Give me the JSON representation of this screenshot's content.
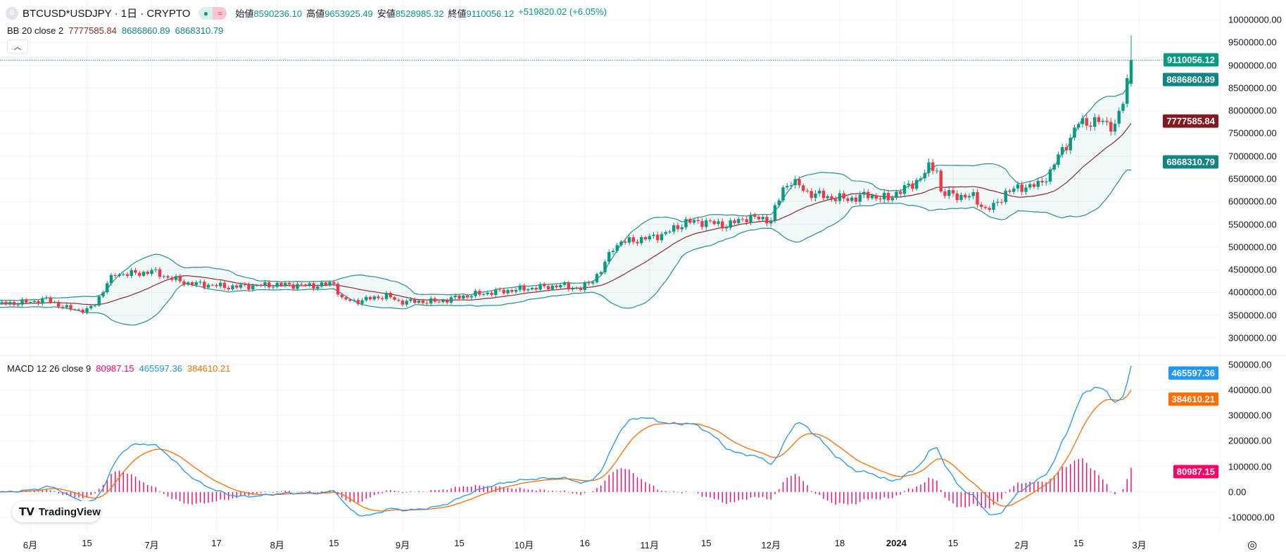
{
  "header": {
    "symbol_initial": "B",
    "symbol": "BTCUSD*USDJPY · 1日 · CRYPTO",
    "ohlc": [
      {
        "k": "始値",
        "v": "8590236.10"
      },
      {
        "k": "高値",
        "v": "9653925.49"
      },
      {
        "k": "安値",
        "v": "8528985.32"
      },
      {
        "k": "終値",
        "v": "9110056.12"
      }
    ],
    "change": "+519820.02 (+6.05%)"
  },
  "bb_legend": {
    "name": "BB 20 close 2",
    "basis": "7777585.84",
    "upper": "8686860.89",
    "lower": "6868310.79"
  },
  "macd_legend": {
    "name": "MACD 12 26 close 9",
    "hist": "80987.15",
    "macd": "465597.36",
    "signal": "384610.21"
  },
  "price_axis": [
    "10000000.00",
    "9500000.00",
    "9000000.00",
    "8500000.00",
    "8000000.00",
    "7500000.00",
    "7000000.00",
    "6500000.00",
    "6000000.00",
    "5500000.00",
    "5000000.00",
    "4500000.00",
    "4000000.00",
    "3500000.00",
    "3000000.00"
  ],
  "macd_axis": [
    "500000.00",
    "400000.00",
    "300000.00",
    "200000.00",
    "100000.00",
    "0.00",
    "-100000.00"
  ],
  "price_tags": [
    {
      "label": "9110056.12",
      "value": 9110056.12,
      "color": "#089981"
    },
    {
      "label": "8686860.89",
      "value": 8686860.89,
      "color": "#138484"
    },
    {
      "label": "7777585.84",
      "value": 7777585.84,
      "color": "#801922"
    },
    {
      "label": "6868310.79",
      "value": 6868310.79,
      "color": "#138484"
    }
  ],
  "macd_tags": [
    {
      "label": "465597.36",
      "value": 465597.36,
      "color": "#2196f3"
    },
    {
      "label": "384610.21",
      "value": 384610.21,
      "color": "#ff6d00"
    },
    {
      "label": "80987.15",
      "value": 80987.15,
      "color": "#ff0066"
    }
  ],
  "time_axis": [
    {
      "l": "6月",
      "d": 0
    },
    {
      "l": "15",
      "d": 14
    },
    {
      "l": "7月",
      "d": 30
    },
    {
      "l": "17",
      "d": 46
    },
    {
      "l": "8月",
      "d": 61
    },
    {
      "l": "15",
      "d": 75
    },
    {
      "l": "9月",
      "d": 92
    },
    {
      "l": "15",
      "d": 106
    },
    {
      "l": "10月",
      "d": 122
    },
    {
      "l": "16",
      "d": 137
    },
    {
      "l": "11月",
      "d": 153
    },
    {
      "l": "15",
      "d": 167
    },
    {
      "l": "12月",
      "d": 183
    },
    {
      "l": "18",
      "d": 200
    },
    {
      "l": "2024",
      "d": 214
    },
    {
      "l": "15",
      "d": 228
    },
    {
      "l": "2月",
      "d": 245
    },
    {
      "l": "15",
      "d": 259
    },
    {
      "l": "3月",
      "d": 274
    }
  ],
  "logo": "TradingView",
  "colors": {
    "up": "#089981",
    "down": "#f23645",
    "basis": "#8b2c2c",
    "band": "#2a8f86",
    "macd": "#2196f3",
    "signal": "#ff6d00",
    "hist": "#ff0066"
  },
  "chart_data": {
    "type": "candlestick",
    "note_units": "price in million JPY; day index from 2023-06-01",
    "anchors": [
      [
        -45,
        3.75
      ],
      [
        -7,
        3.75
      ],
      [
        0,
        3.79
      ],
      [
        4,
        3.85
      ],
      [
        9,
        3.65
      ],
      [
        14,
        3.6
      ],
      [
        16,
        3.75
      ],
      [
        19,
        4.2
      ],
      [
        21,
        4.4
      ],
      [
        27,
        4.42
      ],
      [
        30,
        4.47
      ],
      [
        34,
        4.33
      ],
      [
        39,
        4.2
      ],
      [
        44,
        4.17
      ],
      [
        49,
        4.12
      ],
      [
        61,
        4.17
      ],
      [
        70,
        4.15
      ],
      [
        75,
        4.2
      ],
      [
        77,
        3.85
      ],
      [
        80,
        3.8
      ],
      [
        88,
        3.93
      ],
      [
        91,
        3.8
      ],
      [
        101,
        3.8
      ],
      [
        106,
        3.9
      ],
      [
        111,
        3.97
      ],
      [
        122,
        4.08
      ],
      [
        131,
        4.15
      ],
      [
        136,
        4.08
      ],
      [
        138,
        4.2
      ],
      [
        141,
        4.47
      ],
      [
        144,
        5.0
      ],
      [
        146,
        5.1
      ],
      [
        153,
        5.2
      ],
      [
        157,
        5.3
      ],
      [
        162,
        5.55
      ],
      [
        167,
        5.55
      ],
      [
        172,
        5.47
      ],
      [
        177,
        5.65
      ],
      [
        183,
        5.6
      ],
      [
        186,
        6.28
      ],
      [
        188,
        6.46
      ],
      [
        192,
        6.2
      ],
      [
        197,
        6.1
      ],
      [
        202,
        6.05
      ],
      [
        207,
        6.14
      ],
      [
        212,
        6.05
      ],
      [
        214,
        6.2
      ],
      [
        218,
        6.37
      ],
      [
        222,
        6.73
      ],
      [
        224,
        6.73
      ],
      [
        225,
        6.2
      ],
      [
        228,
        6.14
      ],
      [
        233,
        6.1
      ],
      [
        236,
        5.83
      ],
      [
        238,
        5.88
      ],
      [
        241,
        6.2
      ],
      [
        245,
        6.32
      ],
      [
        249,
        6.36
      ],
      [
        252,
        6.64
      ],
      [
        254,
        7.0
      ],
      [
        257,
        7.4
      ],
      [
        259,
        7.73
      ],
      [
        264,
        7.76
      ],
      [
        268,
        7.67
      ],
      [
        270,
        8.18
      ],
      [
        271,
        8.63
      ]
    ],
    "last_candle": {
      "open": 8590236.1,
      "high": 9653925.49,
      "low": 8528985.32,
      "close": 9110056.12
    },
    "bb": {
      "length": 20,
      "mult": 2
    },
    "macd": {
      "fast": 12,
      "slow": 26,
      "signal": 9
    },
    "ylim": [
      2800000,
      10200000
    ],
    "macd_ylim": [
      -130000,
      520000
    ]
  }
}
